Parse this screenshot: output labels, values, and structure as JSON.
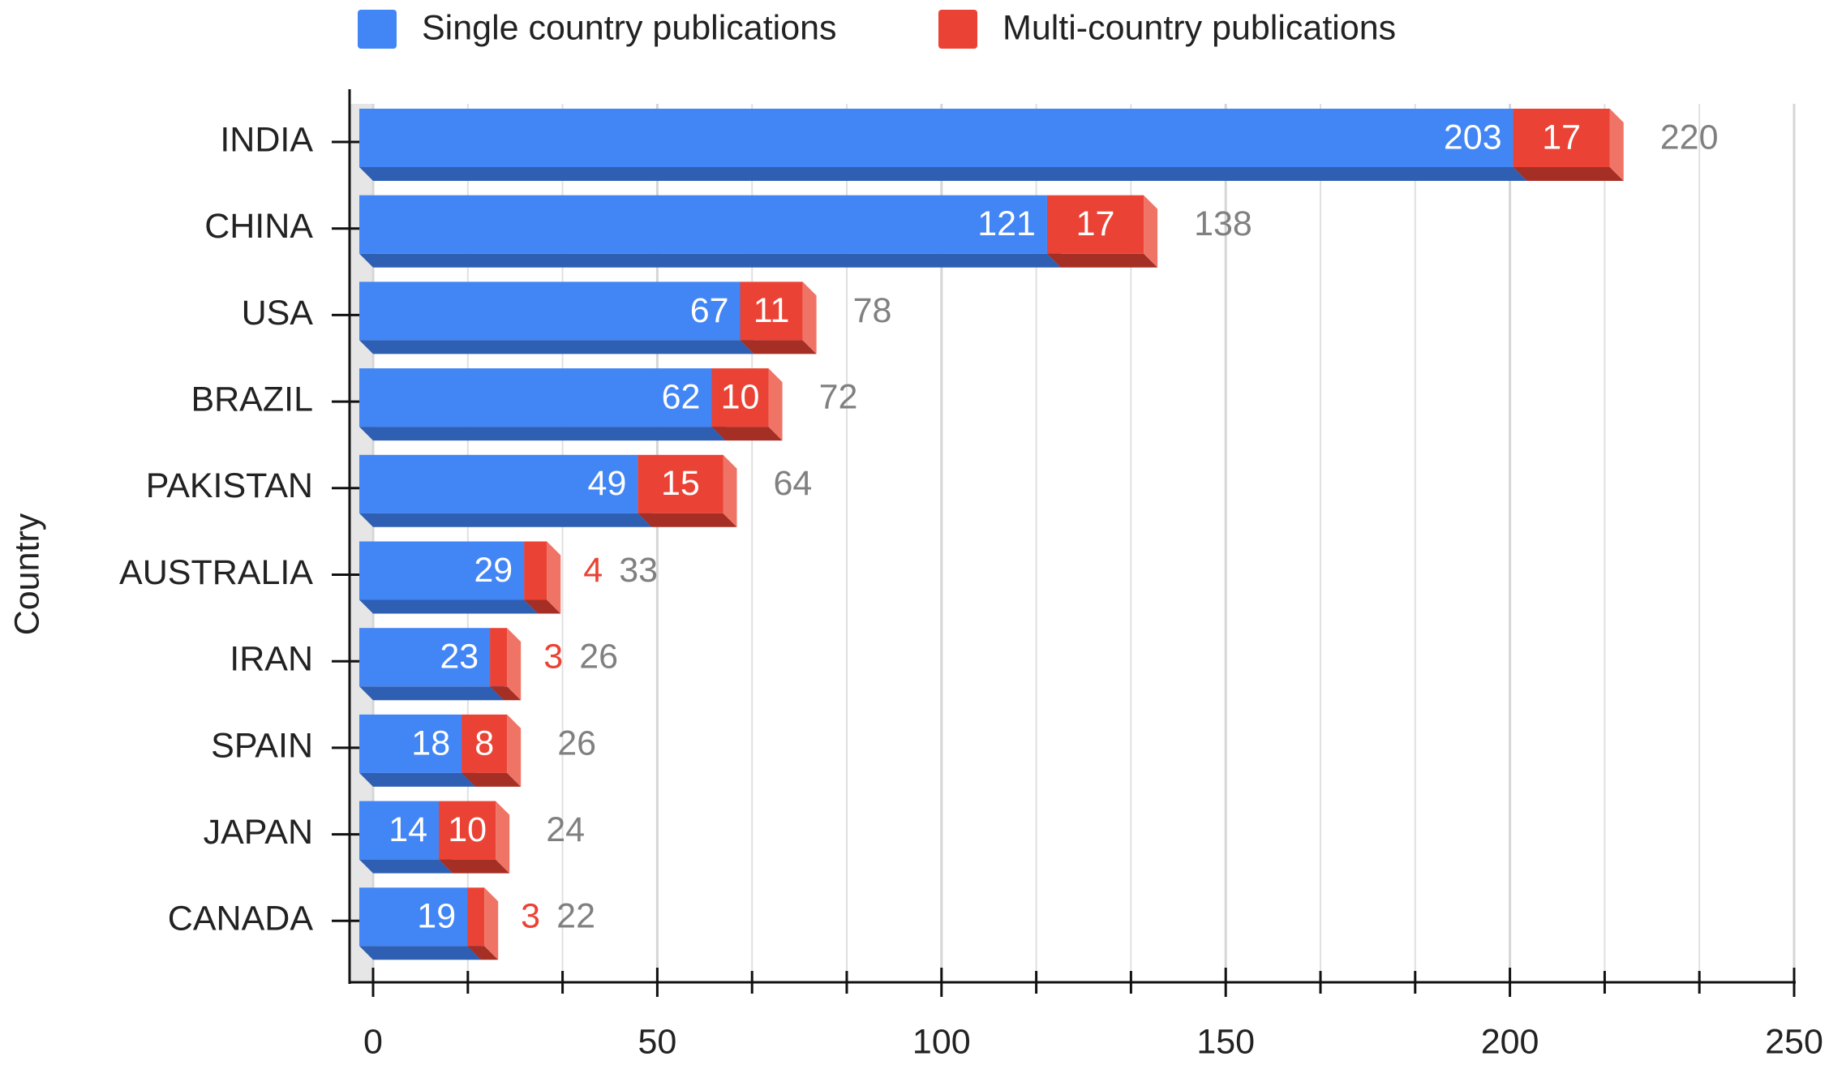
{
  "chart_data": {
    "type": "stacked-bar-3d",
    "orientation": "horizontal",
    "y_label": "Country",
    "categories": [
      "INDIA",
      "CHINA",
      "USA",
      "BRAZIL",
      "PAKISTAN",
      "AUSTRALIA",
      "IRAN",
      "SPAIN",
      "JAPAN",
      "CANADA"
    ],
    "series": [
      {
        "name": "Single country publications",
        "color": "#4285f4",
        "values": [
          203,
          121,
          67,
          62,
          49,
          29,
          23,
          18,
          14,
          19
        ]
      },
      {
        "name": "Multi-country publications",
        "color": "#ea4335",
        "values": [
          17,
          17,
          11,
          10,
          15,
          4,
          3,
          8,
          10,
          3
        ]
      }
    ],
    "totals": [
      220,
      138,
      78,
      72,
      64,
      33,
      26,
      26,
      24,
      22
    ],
    "xlim": [
      0,
      250
    ],
    "xticks": [
      0,
      50,
      100,
      150,
      200,
      250
    ],
    "minor_xticks": [
      16.67,
      33.33,
      66.67,
      83.33,
      116.67,
      133.33,
      166.67,
      183.33,
      216.67,
      233.33
    ],
    "grid": true,
    "legend": "top"
  }
}
